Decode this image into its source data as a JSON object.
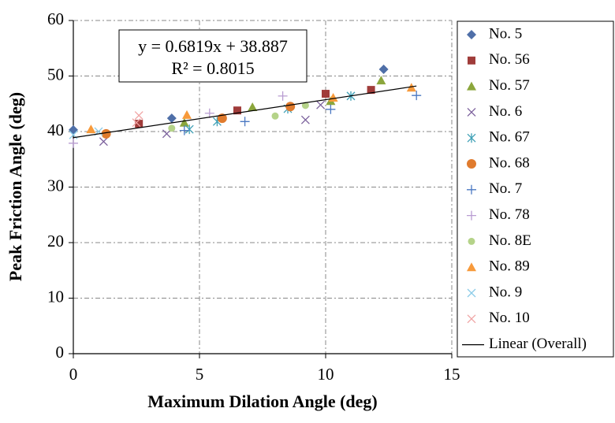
{
  "chart_data": {
    "type": "scatter",
    "x_label": "Maximum Dilation Angle (deg)",
    "y_label": "Peak Friction Angle (deg)",
    "annotations": [
      "y = 0.6819x + 38.887",
      "R² = 0.8015"
    ],
    "xlim": [
      0,
      15
    ],
    "xticks": [
      0,
      5,
      10,
      15
    ],
    "ylim": [
      0,
      60
    ],
    "yticks": [
      0,
      10,
      20,
      30,
      40,
      50,
      60
    ],
    "grid": true,
    "legend_position": "right",
    "series": [
      {
        "name": "No. 5",
        "color": "#4f6fa8",
        "marker": "diamond",
        "x": [
          0,
          3.9,
          12.3
        ],
        "values": [
          40.3,
          42.4,
          51.2
        ]
      },
      {
        "name": "No. 56",
        "color": "#a03c3a",
        "marker": "square",
        "x": [
          2.6,
          6.5,
          10.0,
          11.8
        ],
        "values": [
          41.4,
          43.8,
          46.8,
          47.5
        ]
      },
      {
        "name": "No. 57",
        "color": "#8ba63c",
        "marker": "triangle",
        "x": [
          4.4,
          7.1,
          10.2,
          12.2
        ],
        "values": [
          41.6,
          44.4,
          45.5,
          49.2
        ]
      },
      {
        "name": "No. 6",
        "color": "#7b609c",
        "marker": "x",
        "x": [
          1.2,
          3.7,
          9.2,
          9.8
        ],
        "values": [
          38.2,
          39.6,
          42.1,
          44.8
        ]
      },
      {
        "name": "No. 67",
        "color": "#3fa0b6",
        "marker": "asterisk",
        "x": [
          4.6,
          5.7,
          8.5,
          11.0
        ],
        "values": [
          40.4,
          41.8,
          44.1,
          46.4
        ]
      },
      {
        "name": "No. 68",
        "color": "#e07b2e",
        "marker": "circle",
        "x": [
          1.3,
          5.9,
          8.6
        ],
        "values": [
          39.6,
          42.4,
          44.5
        ]
      },
      {
        "name": "No. 7",
        "color": "#4a78c2",
        "marker": "plus",
        "x": [
          4.4,
          6.8,
          10.2,
          13.6
        ],
        "values": [
          40.2,
          41.8,
          44.0,
          46.5
        ]
      },
      {
        "name": "No. 78",
        "color": "#b89cd1",
        "marker": "plus",
        "x": [
          0,
          5.4,
          8.3
        ],
        "values": [
          37.9,
          43.3,
          46.4
        ]
      },
      {
        "name": "No. 8E",
        "color": "#b5d389",
        "marker": "smallcircle",
        "x": [
          3.9,
          8.0,
          9.2
        ],
        "values": [
          40.6,
          42.8,
          44.7
        ]
      },
      {
        "name": "No. 89",
        "color": "#f79a3b",
        "marker": "triangle",
        "x": [
          0.7,
          4.5,
          10.3,
          13.4
        ],
        "values": [
          40.4,
          43.0,
          46.1,
          47.9
        ]
      },
      {
        "name": "No. 9",
        "color": "#8ccbe8",
        "marker": "x",
        "x": [
          0,
          1.0
        ],
        "values": [
          39.4,
          40.0
        ]
      },
      {
        "name": "No. 10",
        "color": "#f0a4a4",
        "marker": "x",
        "x": [
          2.5,
          2.6
        ],
        "values": [
          41.6,
          42.9
        ]
      }
    ],
    "trendline": {
      "name": "Linear (Overall)",
      "color": "#000000",
      "x": [
        0,
        13.6
      ],
      "values": [
        38.9,
        48.2
      ]
    }
  }
}
